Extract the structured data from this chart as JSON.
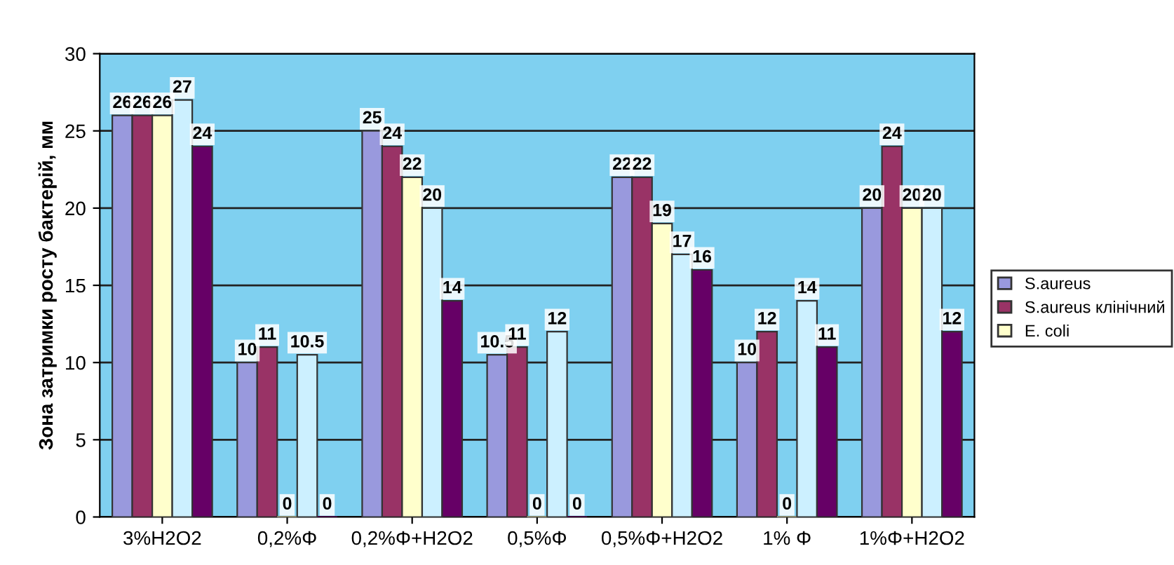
{
  "chart_data": {
    "type": "bar",
    "ylabel": "Зона затримки росту бактерій, мм",
    "categories": [
      "3%H2O2",
      "0,2%Φ",
      "0,2%Φ+H2O2",
      "0,5%Φ",
      "0,5%Φ+H2O2",
      "1% Φ",
      "1%Φ+H2O2"
    ],
    "series": [
      {
        "name": "S.aureus",
        "color": "#9999dd",
        "values": [
          26,
          10,
          25,
          10.5,
          22,
          10,
          20
        ]
      },
      {
        "name": "S.aureus клінічний",
        "color": "#993366",
        "values": [
          26,
          11,
          24,
          11,
          22,
          12,
          24
        ]
      },
      {
        "name": "E. coli",
        "color": "#ffffcc",
        "values": [
          26,
          0,
          22,
          0,
          19,
          0,
          20
        ]
      },
      {
        "color": "#ccf0ff",
        "values": [
          27,
          10.5,
          20,
          12,
          17,
          14,
          20
        ]
      },
      {
        "color": "#660066",
        "values": [
          24,
          0,
          14,
          0,
          16,
          11,
          12
        ]
      }
    ],
    "ylim": [
      0,
      30
    ],
    "yticks": [
      0,
      5,
      10,
      15,
      20,
      25,
      30
    ],
    "grid": "y",
    "legend": "right",
    "data_labels": true
  }
}
